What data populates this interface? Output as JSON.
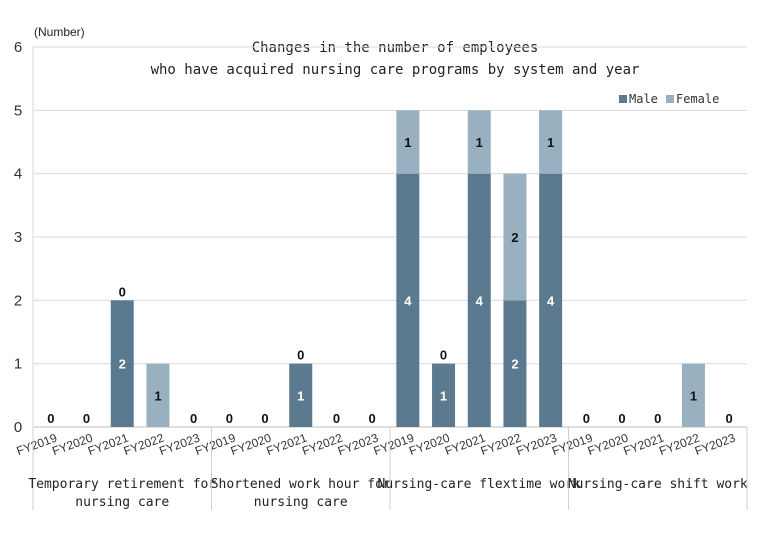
{
  "chart_data": {
    "type": "bar",
    "stacked": true,
    "title_lines": [
      "Changes in the number of employees",
      "who have acquired nursing care programs by system and year"
    ],
    "unit_label": "(Number)",
    "ylim": [
      0,
      6
    ],
    "yticks": [
      "0",
      "1",
      "2",
      "3",
      "4",
      "5",
      "6"
    ],
    "grid": true,
    "legend_position": "top-right",
    "colors": {
      "male": "#5b7a90",
      "female": "#98b0c0"
    },
    "groups": [
      {
        "label_lines": [
          "Temporary retirement for",
          "nursing care"
        ],
        "years": [
          "FY2019",
          "FY2020",
          "FY2021",
          "FY2022",
          "FY2023"
        ],
        "male": [
          0,
          0,
          2,
          0,
          0
        ],
        "female": [
          0,
          0,
          0,
          1,
          0
        ]
      },
      {
        "label_lines": [
          "Shortened work hour for",
          "nursing care"
        ],
        "years": [
          "FY2019",
          "FY2020",
          "FY2021",
          "FY2022",
          "FY2023"
        ],
        "male": [
          0,
          0,
          1,
          0,
          0
        ],
        "female": [
          0,
          0,
          0,
          0,
          0
        ]
      },
      {
        "label_lines": [
          "Nursing-care flextime work"
        ],
        "years": [
          "FY2019",
          "FY2020",
          "FY2021",
          "FY2022",
          "FY2023"
        ],
        "male": [
          4,
          1,
          4,
          2,
          4
        ],
        "female": [
          1,
          0,
          1,
          2,
          1
        ]
      },
      {
        "label_lines": [
          "Nursing-care shift work"
        ],
        "years": [
          "FY2019",
          "FY2020",
          "FY2021",
          "FY2022",
          "FY2023"
        ],
        "male": [
          0,
          0,
          0,
          0,
          0
        ],
        "female": [
          0,
          0,
          0,
          1,
          0
        ]
      }
    ],
    "series": [
      {
        "key": "male",
        "name": "Male"
      },
      {
        "key": "female",
        "name": "Female"
      }
    ]
  }
}
